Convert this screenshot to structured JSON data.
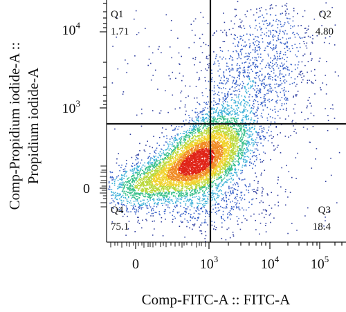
{
  "chart_data": {
    "type": "scatter",
    "xlabel": "Comp-FITC-A :: FITC-A",
    "ylabel_lines": [
      "Comp-Propidium iodide-A ::",
      "Propidium iodide-A"
    ],
    "x_scale": "biexponential",
    "y_scale": "biexponential",
    "x_ticks": [
      {
        "base": "0",
        "exp": ""
      },
      {
        "base": "10",
        "exp": "3"
      },
      {
        "base": "10",
        "exp": "4"
      },
      {
        "base": "10",
        "exp": "5"
      }
    ],
    "y_ticks": [
      {
        "base": "0",
        "exp": ""
      },
      {
        "base": "10",
        "exp": "3"
      },
      {
        "base": "10",
        "exp": "4"
      }
    ],
    "gate": {
      "x_threshold": 1000,
      "y_threshold": 600
    },
    "quadrants": [
      {
        "name": "Q1",
        "value": "1.71"
      },
      {
        "name": "Q2",
        "value": "4.80"
      },
      {
        "name": "Q3",
        "value": "18.4"
      },
      {
        "name": "Q4",
        "value": "75.1"
      }
    ],
    "density_colormap": [
      "#2e3d9e",
      "#3b63c9",
      "#3bb0d8",
      "#39c08a",
      "#b9d83a",
      "#f0d22c",
      "#f08a24",
      "#e02518"
    ],
    "grid": false,
    "legend": "none"
  }
}
